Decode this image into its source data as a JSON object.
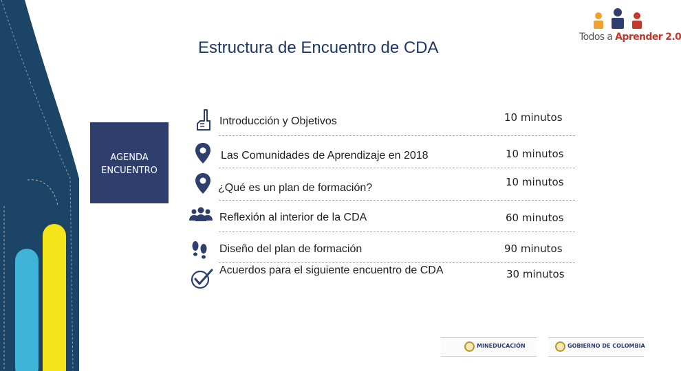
{
  "slide": {
    "title": "Estructura de Encuentro de CDA"
  },
  "logo": {
    "text_prefix": "Todos a ",
    "text_bold": "Aprender 2.0",
    "colors": {
      "orange": "#f0a030",
      "blue": "#2e3f6e",
      "red": "#c0392b"
    }
  },
  "agenda": {
    "line1": "AGENDA",
    "line2": "ENCUENTRO"
  },
  "items": [
    {
      "icon": "hand-pointing-icon",
      "label": "Introducción y Objetivos",
      "time": "10 minutos"
    },
    {
      "icon": "location-pin-icon",
      "label": "Las Comunidades de Aprendizaje en 2018",
      "time": "10 minutos"
    },
    {
      "icon": "location-pin-icon",
      "label": "¿Qué es un plan de formación?",
      "time": "10 minutos"
    },
    {
      "icon": "people-group-icon",
      "label": "Reflexión al interior de la CDA",
      "time": "60 minutos"
    },
    {
      "icon": "footprints-icon",
      "label": "Diseño del plan de formación",
      "time": "90 minutos"
    },
    {
      "icon": "check-circle-icon",
      "label": "Acuerdos para el siguiente encuentro de CDA",
      "time": "30 minutos"
    }
  ],
  "footer": {
    "mineducacion": "MINEDUCACIÓN",
    "gobierno": "GOBIERNO DE COLOMBIA"
  }
}
